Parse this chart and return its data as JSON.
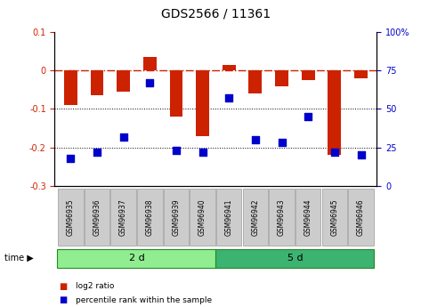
{
  "title": "GDS2566 / 11361",
  "samples": [
    "GSM96935",
    "GSM96936",
    "GSM96937",
    "GSM96938",
    "GSM96939",
    "GSM96940",
    "GSM96941",
    "GSM96942",
    "GSM96943",
    "GSM96944",
    "GSM96945",
    "GSM96946"
  ],
  "log2_ratio": [
    -0.09,
    -0.065,
    -0.055,
    0.035,
    -0.12,
    -0.17,
    0.015,
    -0.06,
    -0.04,
    -0.025,
    -0.22,
    -0.02
  ],
  "percentile_rank": [
    18,
    22,
    32,
    67,
    23,
    22,
    57,
    30,
    28,
    45,
    22,
    20
  ],
  "groups": [
    {
      "label": "2 d",
      "start": 0,
      "end": 6,
      "color": "#90EE90"
    },
    {
      "label": "5 d",
      "start": 6,
      "end": 12,
      "color": "#3CB371"
    }
  ],
  "ylim_left": [
    -0.3,
    0.1
  ],
  "ylim_right": [
    0,
    100
  ],
  "yticks_left": [
    0.1,
    0.0,
    -0.1,
    -0.2,
    -0.3
  ],
  "yticks_right": [
    100,
    75,
    50,
    25,
    0
  ],
  "bar_color": "#CC2200",
  "dot_color": "#0000CC",
  "legend_bar_label": "log2 ratio",
  "legend_dot_label": "percentile rank within the sample",
  "group_border_color": "#228B22",
  "sample_box_color": "#CCCCCC",
  "fig_width": 4.73,
  "fig_height": 3.45
}
